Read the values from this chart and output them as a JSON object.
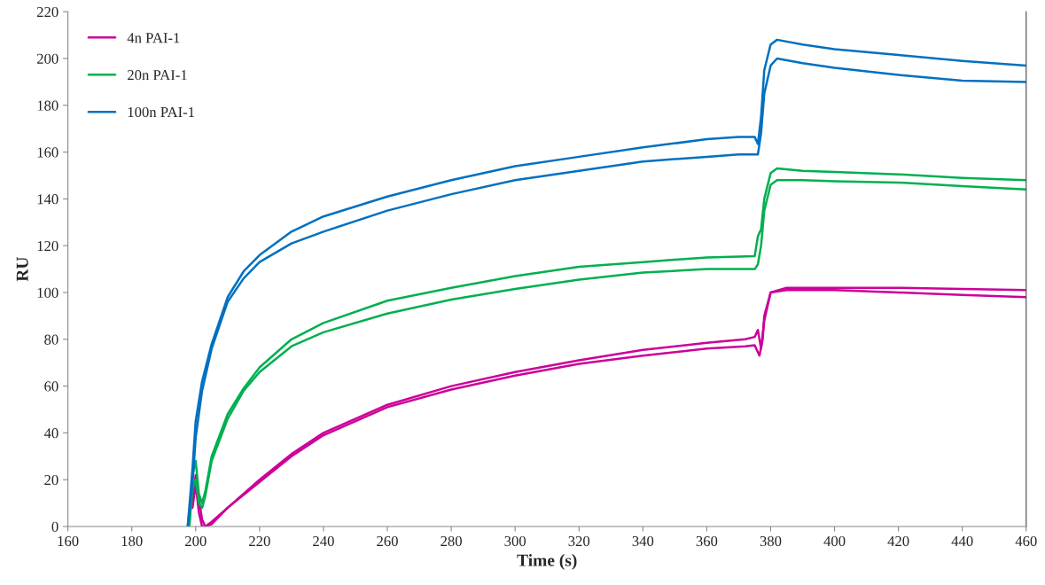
{
  "chart_data": {
    "type": "line",
    "xlabel": "Time (s)",
    "ylabel": "RU",
    "xlim": [
      160,
      460
    ],
    "xticks": [
      160,
      180,
      200,
      220,
      240,
      260,
      280,
      300,
      320,
      340,
      360,
      380,
      400,
      420,
      440,
      460
    ],
    "ylim": [
      0,
      220
    ],
    "yticks": [
      0,
      20,
      40,
      60,
      80,
      100,
      120,
      140,
      160,
      180,
      200,
      220
    ],
    "grid": false,
    "legend": "top left",
    "marker": "none",
    "line_style": "solid",
    "series": [
      {
        "name": "4n PAI-1",
        "color": "#cc0099",
        "x": [
          199,
          200,
          201,
          202,
          203,
          205,
          210,
          220,
          230,
          240,
          260,
          280,
          300,
          320,
          340,
          360,
          372,
          375,
          376,
          377,
          378,
          380,
          385,
          400,
          420,
          440,
          460
        ],
        "values": [
          10,
          22,
          12,
          3,
          0,
          1,
          8,
          20,
          31,
          40,
          52,
          60,
          66,
          71,
          75.5,
          78.5,
          80,
          81,
          84,
          76,
          88,
          100,
          102,
          102,
          102,
          101.5,
          101
        ]
      },
      {
        "color": "#cc0099",
        "x": [
          199,
          200,
          201,
          202,
          203,
          205,
          210,
          220,
          230,
          240,
          260,
          280,
          300,
          320,
          340,
          360,
          372,
          375,
          376.5,
          377.5,
          378,
          380,
          385,
          400,
          420,
          440,
          460
        ],
        "values": [
          8,
          18,
          6,
          0,
          0,
          2,
          8,
          19,
          30,
          39,
          51,
          58.5,
          64.5,
          69.5,
          73,
          76,
          77,
          77.5,
          73,
          80,
          90,
          100,
          101,
          101,
          100,
          99,
          98
        ]
      },
      {
        "name": "20n PAI-1",
        "color": "#00b050",
        "x": [
          198,
          199,
          200,
          201,
          202,
          203,
          205,
          210,
          215,
          220,
          230,
          240,
          260,
          280,
          300,
          320,
          340,
          360,
          375,
          376,
          377,
          378,
          380,
          382,
          390,
          400,
          420,
          440,
          460
        ],
        "values": [
          0,
          22,
          28,
          14,
          10,
          15,
          30,
          48,
          59,
          68,
          80,
          87,
          96.5,
          102,
          107,
          111,
          113,
          115,
          115.5,
          124,
          127,
          140,
          151,
          153,
          152,
          151.5,
          150.5,
          149,
          148
        ]
      },
      {
        "color": "#00b050",
        "x": [
          198,
          199,
          200,
          201,
          202,
          203,
          205,
          210,
          215,
          220,
          230,
          240,
          260,
          280,
          300,
          320,
          340,
          360,
          375,
          376,
          377,
          378,
          380,
          382,
          390,
          400,
          420,
          440,
          460
        ],
        "values": [
          0,
          16,
          20,
          10,
          8,
          13,
          28,
          46,
          58,
          66,
          77,
          83,
          91,
          97,
          101.5,
          105.5,
          108.5,
          110,
          110,
          112,
          120,
          135,
          146,
          148,
          148,
          147.5,
          147,
          145.5,
          144
        ]
      },
      {
        "name": "100n PAI-1",
        "color": "#0070c0",
        "x": [
          197.5,
          199,
          200,
          202,
          205,
          210,
          215,
          220,
          230,
          240,
          260,
          280,
          300,
          320,
          340,
          360,
          370,
          375,
          376,
          377,
          378,
          380,
          382,
          390,
          400,
          420,
          440,
          460
        ],
        "values": [
          0,
          25,
          45,
          62,
          78,
          98,
          109,
          116,
          126,
          132.5,
          141,
          148,
          154,
          158,
          162,
          165.5,
          166.5,
          166.5,
          163.5,
          175,
          195,
          206,
          208,
          206,
          204,
          201.5,
          199,
          197
        ]
      },
      {
        "color": "#0070c0",
        "x": [
          197.5,
          199,
          200,
          202,
          205,
          210,
          215,
          220,
          230,
          240,
          260,
          280,
          300,
          320,
          340,
          360,
          370,
          375,
          376,
          377,
          378,
          380,
          382,
          390,
          400,
          420,
          440,
          460
        ],
        "values": [
          0,
          18,
          38,
          58,
          76,
          96,
          106,
          113,
          121,
          126,
          135,
          142,
          148,
          152,
          156,
          158,
          159,
          159,
          159,
          168,
          185,
          197,
          200,
          198,
          196,
          193,
          190.5,
          190
        ]
      }
    ]
  }
}
